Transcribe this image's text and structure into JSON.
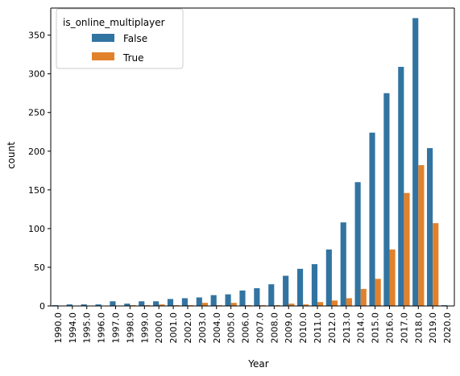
{
  "chart_data": {
    "type": "bar",
    "xlabel": "Year",
    "ylabel": "count",
    "ylim": [
      0,
      385
    ],
    "yticks": [
      0,
      50,
      100,
      150,
      200,
      250,
      300,
      350
    ],
    "categories": [
      "1990.0",
      "1994.0",
      "1995.0",
      "1996.0",
      "1997.0",
      "1998.0",
      "1999.0",
      "2000.0",
      "2001.0",
      "2002.0",
      "2003.0",
      "2004.0",
      "2005.0",
      "2006.0",
      "2007.0",
      "2008.0",
      "2009.0",
      "2010.0",
      "2011.0",
      "2012.0",
      "2013.0",
      "2014.0",
      "2015.0",
      "2016.0",
      "2017.0",
      "2018.0",
      "2019.0",
      "2020.0"
    ],
    "legend": {
      "title": "is_online_multiplayer",
      "position": "top-left"
    },
    "grid": false,
    "series": [
      {
        "name": "False",
        "color": "#3274a1",
        "values": [
          1,
          2,
          2,
          2,
          6,
          3,
          6,
          6,
          9,
          10,
          11,
          14,
          15,
          20,
          23,
          28,
          39,
          48,
          54,
          73,
          108,
          160,
          224,
          275,
          309,
          372,
          204,
          1
        ]
      },
      {
        "name": "True",
        "color": "#e1812c",
        "values": [
          0,
          0,
          0,
          0,
          0,
          1,
          1,
          2,
          1,
          1,
          4,
          1,
          4,
          1,
          1,
          1,
          3,
          2,
          5,
          7,
          10,
          22,
          35,
          73,
          146,
          182,
          107,
          0
        ]
      }
    ]
  }
}
